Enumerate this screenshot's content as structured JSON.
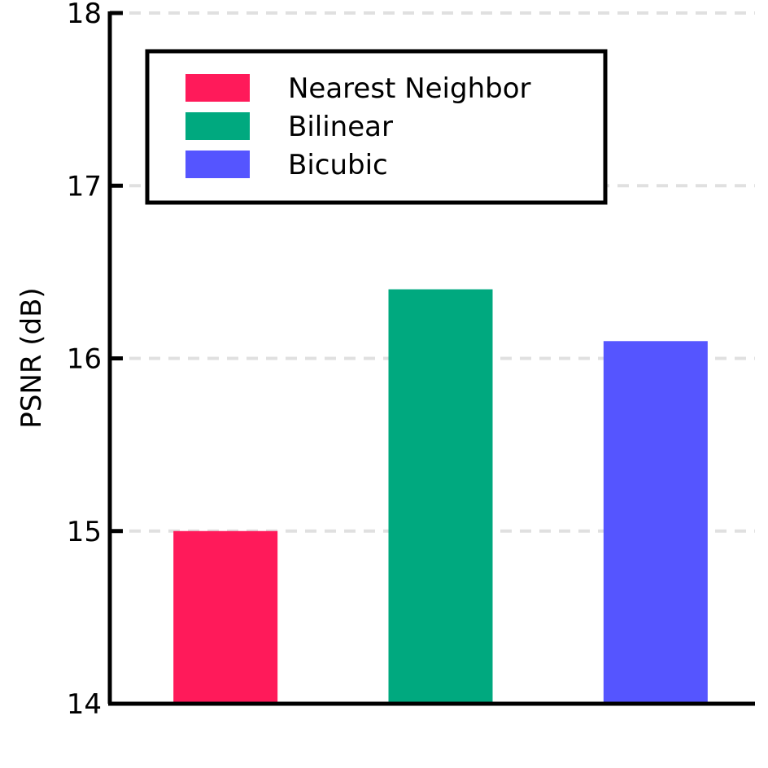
{
  "chart_data": {
    "type": "bar",
    "categories": [
      "Nearest Neighbor",
      "Bilinear",
      "Bicubic"
    ],
    "values": [
      15.0,
      16.4,
      16.1
    ],
    "colors": [
      "#ff1a5a",
      "#00a97f",
      "#5555ff"
    ],
    "ylabel": "PSNR (dB)",
    "xlabel": "",
    "ylim": [
      14,
      18
    ],
    "yticks": [
      "14",
      "15",
      "16",
      "17",
      "18"
    ],
    "grid": true,
    "grid_style": "dashed horizontal",
    "legend_placement": "top-left"
  }
}
